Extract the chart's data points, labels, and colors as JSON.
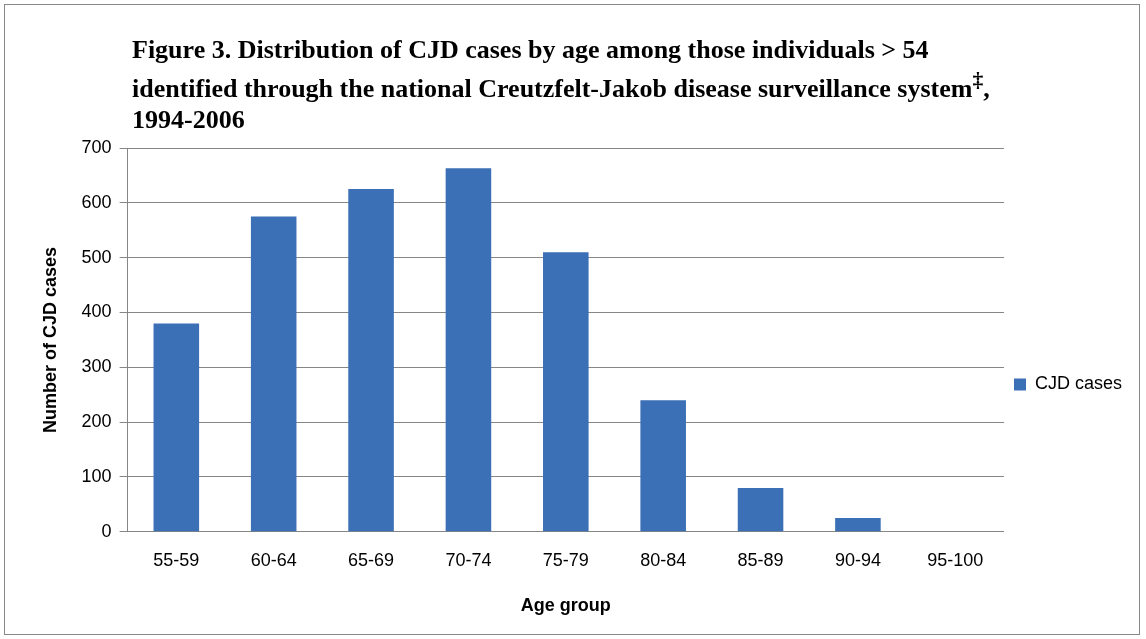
{
  "chart_data": {
    "type": "bar",
    "title": "Figure 3. Distribution of CJD cases by age among those individuals > 54 identified through the national Creutzfelt-Jakob disease surveillance system$^{‡}$, 1994-2006",
    "xlabel": "Age group",
    "ylabel": "Number of CJD cases",
    "categories": [
      "55-59",
      "60-64",
      "65-69",
      "70-74",
      "75-79",
      "80-84",
      "85-89",
      "90-94",
      "95-100"
    ],
    "series": [
      {
        "name": "CJD cases",
        "color": "#3b6fb6",
        "values": [
          380,
          575,
          625,
          663,
          510,
          240,
          80,
          25,
          0
        ]
      }
    ],
    "ylim": [
      0,
      700
    ],
    "yticks": [
      0,
      100,
      200,
      300,
      400,
      500,
      600,
      700
    ],
    "grid": "y",
    "legend": "right"
  }
}
